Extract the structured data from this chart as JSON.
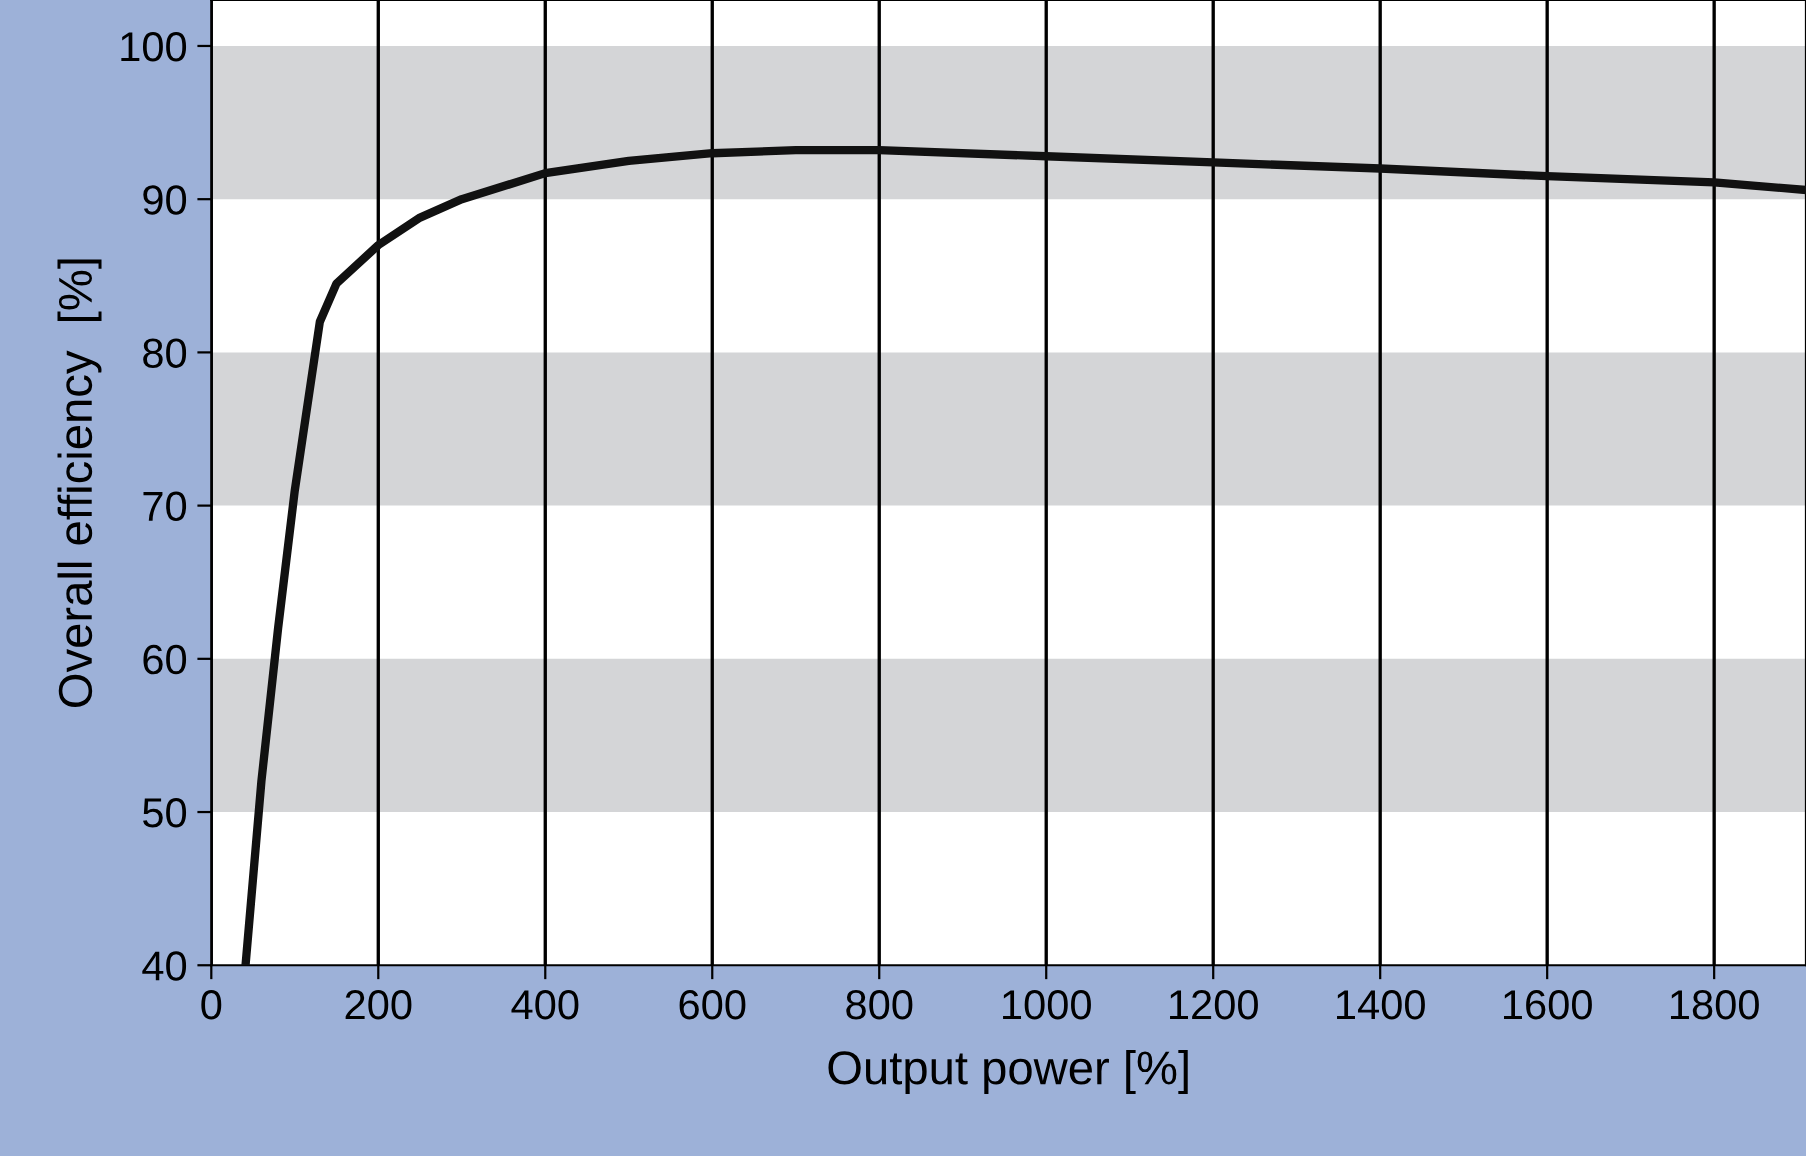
{
  "chart_data": {
    "type": "line",
    "xlabel": "Output power [%]",
    "ylabel": "Overall efficiency  [%]",
    "x": [
      41,
      60,
      80,
      100,
      130,
      150,
      200,
      250,
      300,
      400,
      500,
      600,
      700,
      800,
      1000,
      1200,
      1400,
      1600,
      1800,
      1910
    ],
    "series": [
      {
        "color": "#111111",
        "values": [
          40,
          52,
          62,
          71,
          82,
          84.5,
          87,
          88.8,
          90,
          91.7,
          92.5,
          93,
          93.2,
          93.2,
          92.8,
          92.4,
          92,
          91.5,
          91.1,
          90.6
        ]
      }
    ],
    "xlim": [
      0,
      1910
    ],
    "xticks": [
      0,
      200,
      400,
      600,
      800,
      1000,
      1200,
      1400,
      1600,
      1800
    ],
    "ylim": [
      40,
      103
    ],
    "yticks": [
      40,
      50,
      60,
      70,
      80,
      90,
      100
    ],
    "bands": [
      {
        "axis": "y",
        "from": 90,
        "to": 100,
        "color": "#d4d5d7"
      },
      {
        "axis": "y",
        "from": 70,
        "to": 80,
        "color": "#d4d5d7"
      },
      {
        "axis": "y",
        "from": 50,
        "to": 60,
        "color": "#d4d5d7"
      }
    ],
    "grid": "x",
    "marker": "none",
    "line_style": "solid",
    "legend": false
  }
}
